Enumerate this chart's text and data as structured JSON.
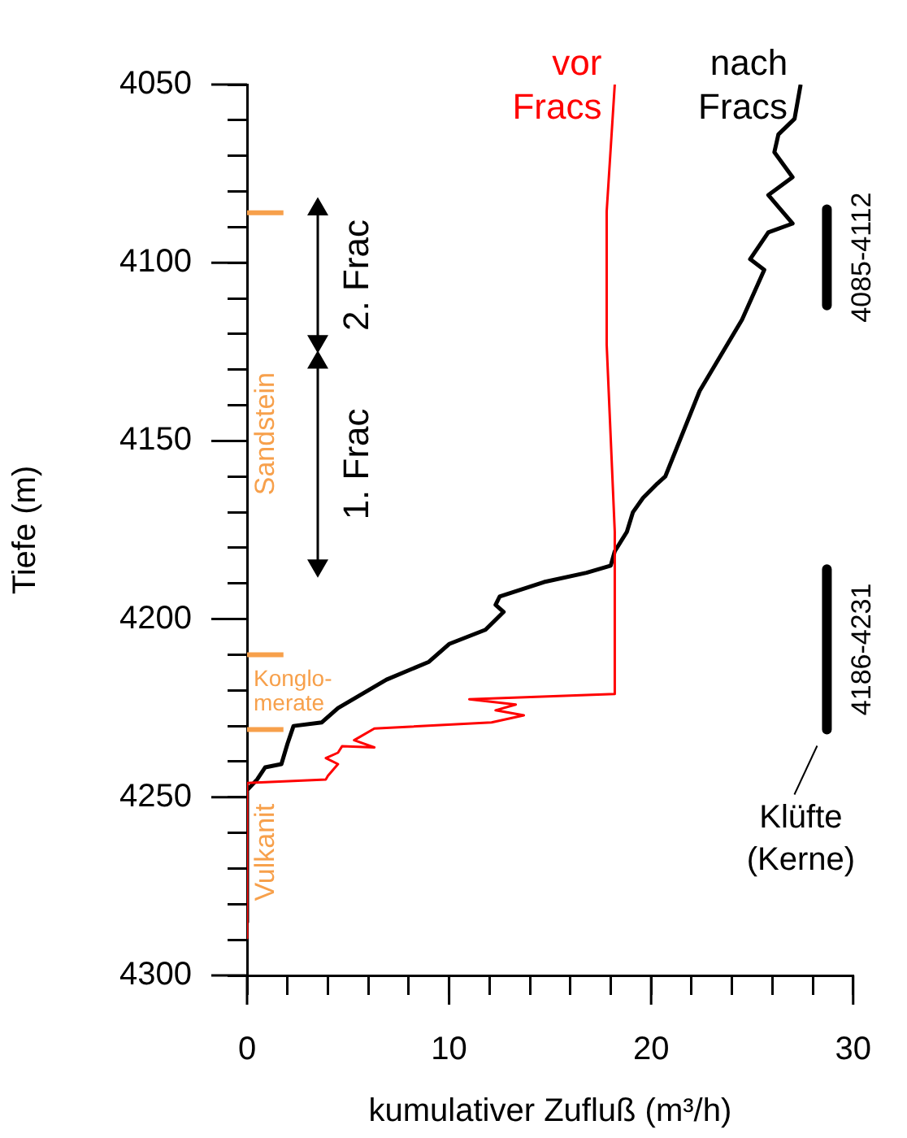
{
  "chart_data": {
    "type": "line",
    "xlabel": "kumulativer Zufluß (m³/h)",
    "ylabel": "Tiefe (m)",
    "xlim": [
      0,
      30
    ],
    "ylim": [
      4300,
      4050
    ],
    "xticks": [
      0,
      {
        "value": 2,
        "label": null
      },
      {
        "value": 4,
        "label": null
      },
      {
        "value": 6,
        "label": null
      },
      {
        "value": 8,
        "label": null
      },
      10,
      {
        "value": 12,
        "label": null
      },
      {
        "value": 14,
        "label": null
      },
      {
        "value": 16,
        "label": null
      },
      {
        "value": 18,
        "label": null
      },
      20,
      {
        "value": 22,
        "label": null
      },
      {
        "value": 24,
        "label": null
      },
      {
        "value": 26,
        "label": null
      },
      {
        "value": 28,
        "label": null
      },
      30
    ],
    "yticks": [
      4050,
      {
        "value": 4060,
        "label": null
      },
      {
        "value": 4070,
        "label": null
      },
      {
        "value": 4080,
        "label": null
      },
      {
        "value": 4090,
        "label": null
      },
      4100,
      {
        "value": 4110,
        "label": null
      },
      {
        "value": 4120,
        "label": null
      },
      {
        "value": 4130,
        "label": null
      },
      {
        "value": 4140,
        "label": null
      },
      4150,
      {
        "value": 4160,
        "label": null
      },
      {
        "value": 4170,
        "label": null
      },
      {
        "value": 4180,
        "label": null
      },
      {
        "value": 4190,
        "label": null
      },
      4200,
      {
        "value": 4210,
        "label": null
      },
      {
        "value": 4220,
        "label": null
      },
      {
        "value": 4230,
        "label": null
      },
      {
        "value": 4240,
        "label": null
      },
      4250,
      {
        "value": 4260,
        "label": null
      },
      {
        "value": 4270,
        "label": null
      },
      {
        "value": 4280,
        "label": null
      },
      {
        "value": 4290,
        "label": null
      },
      4300
    ],
    "grid": false,
    "legend": false,
    "marker": "none",
    "line_style": "solid",
    "series": [
      {
        "name": "vor Fracs",
        "color": "#ff0000",
        "x": [
          18.2,
          17.8,
          17.8,
          18.2,
          18.2,
          11.0,
          13.3,
          12.3,
          13.7,
          12.1,
          6.3,
          5.3,
          6.3,
          4.7,
          4.5,
          3.9,
          4.5,
          4.0,
          3.9,
          0,
          0
        ],
        "values": [
          4050,
          4085.6,
          4123,
          4175.5,
          4221,
          4222.5,
          4224,
          4225.6,
          4227,
          4229,
          4230.7,
          4234,
          4236,
          4235.7,
          4237.5,
          4239,
          4240.7,
          4244,
          4245,
          4246,
          4289.5
        ]
      },
      {
        "name": "nach Fracs",
        "color": "#000000",
        "x": [
          27.4,
          27.1,
          26.3,
          26.1,
          27.0,
          25.8,
          27.0,
          25.8,
          24.9,
          25.6,
          24.5,
          22.4,
          20.7,
          20.3,
          19.6,
          19.1,
          18.8,
          18.2,
          18.0,
          16.8,
          14.7,
          12.5,
          12.3,
          12.7,
          11.8,
          10.0,
          9.0,
          6.9,
          4.5,
          3.7,
          2.3,
          2.0,
          1.7,
          0.9,
          0.5,
          0.0,
          0.0
        ],
        "values": [
          4050,
          4059.6,
          4064,
          4069,
          4076,
          4081,
          4089,
          4091.5,
          4099,
          4102,
          4116,
          4136,
          4160,
          4162,
          4166,
          4170,
          4175.5,
          4181,
          4185,
          4187,
          4189.6,
          4193.7,
          4196,
          4198,
          4203,
          4207,
          4212,
          4217,
          4225,
          4229,
          4230,
          4235,
          4240.7,
          4241.6,
          4245,
          4248,
          4285
        ]
      },
      {
        "name": "2. Frac",
        "color": "#000000",
        "marker": "triangle",
        "x": [
          3.5,
          3.5
        ],
        "values": [
          4085,
          4122
        ]
      },
      {
        "name": "1. Frac",
        "color": "#000000",
        "marker": "triangle",
        "x": [
          3.5,
          3.5
        ],
        "values": [
          4128,
          4185
        ]
      },
      {
        "name": "4085-4112",
        "color": "#000000",
        "x": [
          28.7,
          28.7
        ],
        "values": [
          4085,
          4112
        ]
      },
      {
        "name": "4186-4231",
        "color": "#000000",
        "x": [
          28.7,
          28.7
        ],
        "values": [
          4186,
          4231
        ]
      },
      {
        "color": "#f7a04b",
        "x": [
          0,
          1.8
        ],
        "values": [
          4086,
          4086
        ]
      },
      {
        "color": "#f7a04b",
        "x": [
          0,
          1.8
        ],
        "values": [
          4210,
          4210
        ]
      },
      {
        "color": "#f7a04b",
        "x": [
          0,
          1.8
        ],
        "values": [
          4231,
          4231
        ]
      }
    ],
    "annotations": [
      "Sandstein",
      "Konglo- merate",
      "Vulkanit",
      "Klüfte (Kerne)"
    ]
  }
}
